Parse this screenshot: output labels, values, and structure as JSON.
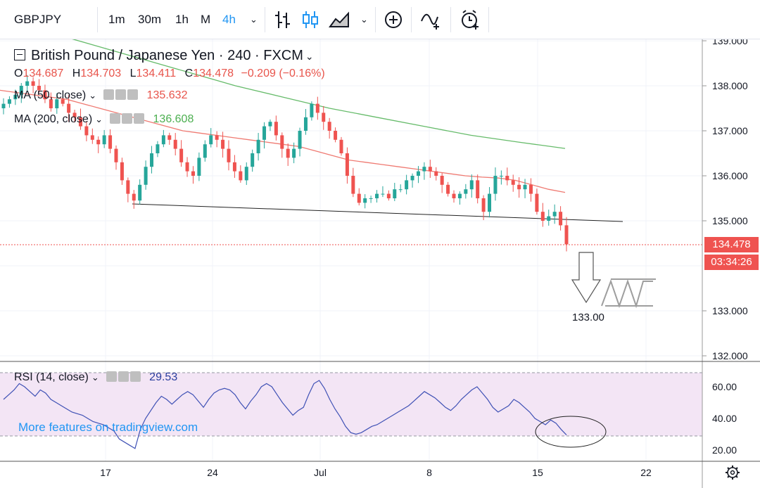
{
  "toolbar": {
    "symbol": "GBPJPY",
    "intervals": [
      "1m",
      "30m",
      "1h",
      "M",
      "4h"
    ],
    "active_interval": "4h",
    "icons": [
      "bar-chart-icon",
      "candles-icon",
      "area-chart-icon",
      "chevron-down-icon",
      "compare-plus-icon",
      "indicators-icon",
      "alert-clock-icon"
    ]
  },
  "legend": {
    "title": "British Pound / Japanese Yen · 240 · FXCM",
    "ohlc": {
      "o_label": "O",
      "o": "134.687",
      "h_label": "H",
      "h": "134.703",
      "l_label": "L",
      "l": "134.411",
      "c_label": "C",
      "c": "134.478",
      "change": "−0.209 (−0.16%)"
    },
    "ma50": {
      "label": "MA (50, close)",
      "value": "135.632",
      "color": "#e8544b"
    },
    "ma200": {
      "label": "MA (200, close)",
      "value": "136.608",
      "color": "#4caf50"
    }
  },
  "rsi_legend": {
    "label": "RSI (14, close)",
    "value": "29.53"
  },
  "watermark": "More features on tradingview.com",
  "price_tag": {
    "price": "134.478",
    "countdown": "03:34:26"
  },
  "annotation_target": "133.00",
  "colors": {
    "up": "#26a69a",
    "down": "#ef5350",
    "ma50": "#ef7a72",
    "ma200": "#66bb6a",
    "rsi_line": "#3f51b5",
    "rsi_band": "#f3e5f5",
    "accent": "#2196f3"
  },
  "chart_data": [
    {
      "type": "candlestick",
      "title": "British Pound / Japanese Yen · 240 · FXCM",
      "ylim": [
        131.8,
        139.1
      ],
      "y_ticks": [
        "139.000",
        "138.000",
        "137.000",
        "136.000",
        "135.000",
        "133.000",
        "132.000"
      ],
      "x_ticks": [
        "17",
        "24",
        "Jul",
        "8",
        "15",
        "22"
      ],
      "close_path": [
        137.6,
        137.7,
        137.8,
        138.0,
        138.1,
        138.0,
        137.9,
        137.7,
        137.5,
        137.7,
        137.6,
        137.4,
        137.3,
        137.1,
        136.9,
        136.8,
        136.7,
        136.9,
        136.6,
        136.3,
        135.9,
        135.6,
        135.45,
        135.8,
        136.2,
        136.5,
        136.7,
        136.9,
        136.8,
        136.6,
        136.3,
        136.1,
        136.0,
        136.4,
        136.7,
        136.9,
        136.8,
        136.6,
        136.3,
        136.1,
        135.9,
        136.2,
        136.5,
        136.8,
        137.1,
        137.2,
        136.9,
        136.6,
        136.4,
        136.6,
        137.0,
        137.3,
        137.6,
        137.4,
        137.2,
        137.0,
        136.8,
        136.5,
        136.0,
        135.6,
        135.4,
        135.5,
        135.5,
        135.6,
        135.6,
        135.5,
        135.7,
        135.7,
        135.9,
        136.0,
        136.1,
        136.2,
        136.1,
        136.0,
        135.8,
        135.6,
        135.5,
        135.6,
        135.7,
        135.9,
        135.5,
        135.2,
        135.6,
        136.0,
        136.0,
        135.9,
        135.8,
        135.7,
        135.8,
        135.6,
        135.2,
        135.0,
        135.1,
        135.2,
        134.9,
        134.478
      ],
      "ma50": [
        137.9,
        137.85,
        137.8,
        137.75,
        137.7,
        137.6,
        137.5,
        137.4,
        137.3,
        137.2,
        137.1,
        137.0,
        136.95,
        136.9,
        136.85,
        136.8,
        136.75,
        136.7,
        136.65,
        136.55,
        136.45,
        136.35,
        136.3,
        136.25,
        136.2,
        136.15,
        136.1,
        136.05,
        136.0,
        135.97,
        135.95,
        135.9,
        135.8,
        135.7,
        135.632
      ],
      "ma200": [
        139.5,
        139.2,
        138.9,
        138.6,
        138.3,
        138.0,
        137.75,
        137.5,
        137.3,
        137.1,
        136.9,
        136.75,
        136.608
      ],
      "trendline": [
        135.4,
        135.0
      ],
      "last_price": 134.478,
      "target": 133.0
    },
    {
      "type": "line",
      "title": "RSI (14, close)",
      "ylim": [
        17,
        73
      ],
      "y_ticks": [
        "60.00",
        "40.00",
        "20.00"
      ],
      "band": [
        30,
        70
      ],
      "values": [
        52,
        55,
        58,
        62,
        60,
        57,
        54,
        58,
        56,
        52,
        50,
        48,
        46,
        44,
        43,
        42,
        40,
        38,
        37,
        36,
        34,
        32,
        27,
        25,
        23,
        21,
        33,
        40,
        45,
        50,
        54,
        52,
        49,
        52,
        55,
        57,
        55,
        51,
        47,
        52,
        56,
        58,
        59,
        58,
        55,
        50,
        46,
        51,
        55,
        60,
        62,
        60,
        55,
        50,
        46,
        42,
        45,
        47,
        55,
        62,
        64,
        59,
        52,
        46,
        41,
        35,
        31,
        30,
        31,
        33,
        35,
        36,
        38,
        40,
        42,
        44,
        46,
        48,
        51,
        54,
        57,
        55,
        53,
        50,
        47,
        45,
        48,
        52,
        55,
        58,
        60,
        56,
        52,
        47,
        44,
        46,
        48,
        52,
        50,
        47,
        44,
        40,
        38,
        36,
        39,
        37,
        33,
        29.53
      ]
    }
  ]
}
